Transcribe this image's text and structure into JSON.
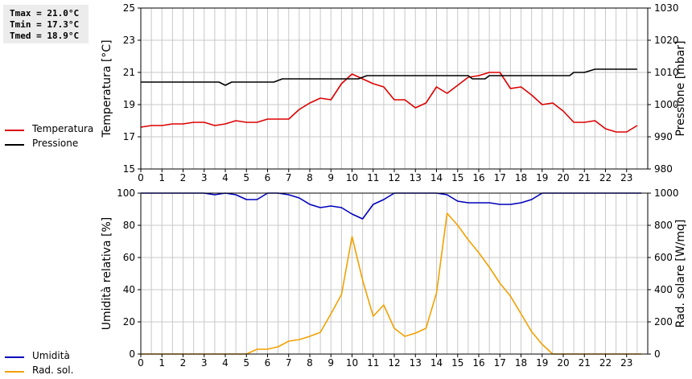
{
  "stats": {
    "tmax": "Tmax = 21.0°C",
    "tmin": "Tmin = 17.3°C",
    "tmed": "Tmed = 18.9°C"
  },
  "colors": {
    "temperature": "#dd0000",
    "pressure": "#000000",
    "humidity": "#0000bb",
    "radiation": "#f2a100",
    "grid": "#c8c8c8"
  },
  "chart_data": [
    {
      "type": "line",
      "x_ticks": [
        "0",
        "1",
        "2",
        "3",
        "4",
        "5",
        "6",
        "7",
        "8",
        "9",
        "10",
        "11",
        "12",
        "13",
        "14",
        "15",
        "16",
        "17",
        "18",
        "19",
        "20",
        "21",
        "22",
        "23"
      ],
      "xlim": [
        0,
        24
      ],
      "ylabel": "Temperatura [°C]",
      "ylim": [
        15,
        25
      ],
      "y_ticks": [
        "15",
        "17",
        "19",
        "21",
        "23",
        "25"
      ],
      "y2label": "Pressione [mbar]",
      "y2lim": [
        980,
        1030
      ],
      "y2_ticks": [
        "980",
        "990",
        "1000",
        "1010",
        "1020",
        "1030"
      ],
      "grid": true,
      "legend_placement": "left",
      "series": [
        {
          "name": "Temperatura",
          "axis": "left",
          "x": [
            0,
            0.5,
            1,
            1.5,
            2,
            2.5,
            3,
            3.5,
            4,
            4.5,
            5,
            5.5,
            6,
            6.5,
            7,
            7.5,
            8,
            8.5,
            9,
            9.5,
            10,
            10.5,
            11,
            11.5,
            12,
            12.5,
            13,
            13.5,
            14,
            14.5,
            15,
            15.5,
            16,
            16.5,
            17,
            17.5,
            18,
            18.5,
            19,
            19.5,
            20,
            20.5,
            21,
            21.5,
            22,
            22.5,
            23,
            23.5
          ],
          "values": [
            17.6,
            17.7,
            17.7,
            17.8,
            17.8,
            17.9,
            17.9,
            17.7,
            17.8,
            18.0,
            17.9,
            17.9,
            18.1,
            18.1,
            18.1,
            18.7,
            19.1,
            19.4,
            19.3,
            20.3,
            20.9,
            20.6,
            20.3,
            20.1,
            19.3,
            19.3,
            18.8,
            19.1,
            20.1,
            19.7,
            20.2,
            20.7,
            20.8,
            21.0,
            21.0,
            20.0,
            20.1,
            19.6,
            19.0,
            19.1,
            18.6,
            17.9,
            17.9,
            18.0,
            17.5,
            17.3,
            17.3,
            17.7
          ]
        },
        {
          "name": "Pressione",
          "axis": "right",
          "x": [
            0,
            3.7,
            4,
            4.3,
            6.3,
            6.7,
            10.3,
            10.7,
            15.5,
            15.7,
            16.3,
            16.5,
            20.3,
            20.5,
            21,
            21.5,
            23.5
          ],
          "values": [
            1007,
            1007,
            1006,
            1007,
            1007,
            1008,
            1008,
            1009,
            1009,
            1008,
            1008,
            1009,
            1009,
            1010,
            1010,
            1011,
            1011
          ]
        }
      ]
    },
    {
      "type": "line",
      "x_ticks": [
        "0",
        "1",
        "2",
        "3",
        "4",
        "5",
        "6",
        "7",
        "8",
        "9",
        "10",
        "11",
        "12",
        "13",
        "14",
        "15",
        "16",
        "17",
        "18",
        "19",
        "20",
        "21",
        "22",
        "23"
      ],
      "xlim": [
        0,
        24
      ],
      "ylabel": "Umidità relativa [%]",
      "ylim": [
        0,
        100
      ],
      "y_ticks": [
        "0",
        "20",
        "40",
        "60",
        "80",
        "100"
      ],
      "y2label": "Rad. solare [W/mq]",
      "y2lim": [
        0,
        1000
      ],
      "y2_ticks": [
        "0",
        "200",
        "400",
        "600",
        "800",
        "1000"
      ],
      "grid": true,
      "legend_placement": "left",
      "series": [
        {
          "name": "Umidità",
          "axis": "left",
          "x": [
            0,
            3,
            3.5,
            4,
            4.5,
            5,
            5.5,
            6,
            6.5,
            7,
            7.5,
            8,
            8.5,
            9,
            9.5,
            10,
            10.5,
            11,
            11.5,
            12,
            14,
            14.5,
            15,
            15.5,
            16,
            16.5,
            17,
            17.5,
            18,
            18.5,
            19,
            23.7
          ],
          "values": [
            100,
            100,
            99,
            100,
            99,
            96,
            96,
            100,
            100,
            99,
            97,
            93,
            91,
            92,
            91,
            87,
            84,
            93,
            96,
            100,
            100,
            99,
            95,
            94,
            94,
            94,
            93,
            93,
            94,
            96,
            100,
            100
          ]
        },
        {
          "name": "Rad. sol.",
          "axis": "right",
          "x": [
            0,
            5,
            5.5,
            6,
            6.5,
            7,
            7.5,
            8,
            8.5,
            9,
            9.5,
            10,
            10.5,
            11,
            11.5,
            12,
            12.5,
            13,
            13.5,
            14,
            14.5,
            15,
            15.5,
            16,
            16.5,
            17,
            17.5,
            18,
            18.5,
            19,
            19.5,
            20,
            23.7
          ],
          "values": [
            0,
            0,
            30,
            30,
            45,
            80,
            90,
            110,
            135,
            250,
            370,
            730,
            460,
            235,
            305,
            160,
            110,
            130,
            160,
            380,
            875,
            800,
            710,
            630,
            540,
            440,
            360,
            250,
            140,
            60,
            0,
            0,
            0
          ]
        }
      ]
    }
  ]
}
